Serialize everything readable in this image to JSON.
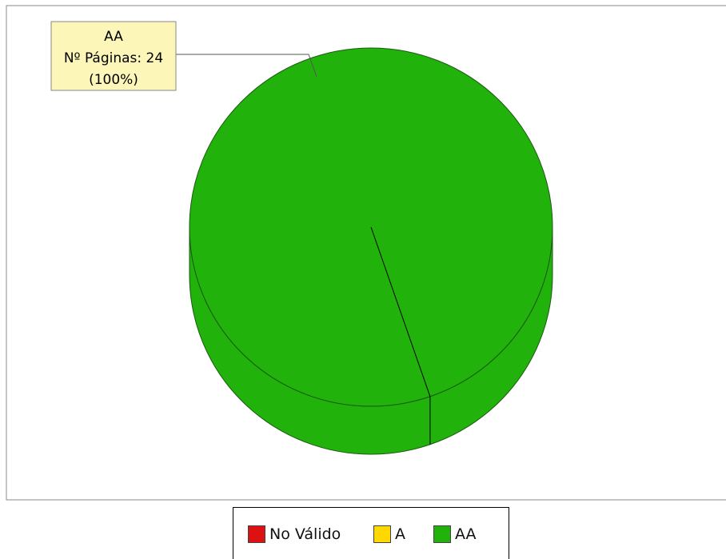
{
  "chart_data": {
    "type": "pie",
    "title": "",
    "three_d": true,
    "slices": [
      {
        "name": "No Válido",
        "value": 0,
        "color": "#dd1111"
      },
      {
        "name": "A",
        "value": 0,
        "color": "#ffd800"
      },
      {
        "name": "AA",
        "value": 24,
        "color": "#22b20c",
        "label_lines": [
          "AA",
          "Nº Páginas: 24",
          "(100%)"
        ]
      }
    ],
    "legend": {
      "placement": "bottom",
      "entries": [
        "No Válido",
        "A",
        "AA"
      ]
    }
  }
}
